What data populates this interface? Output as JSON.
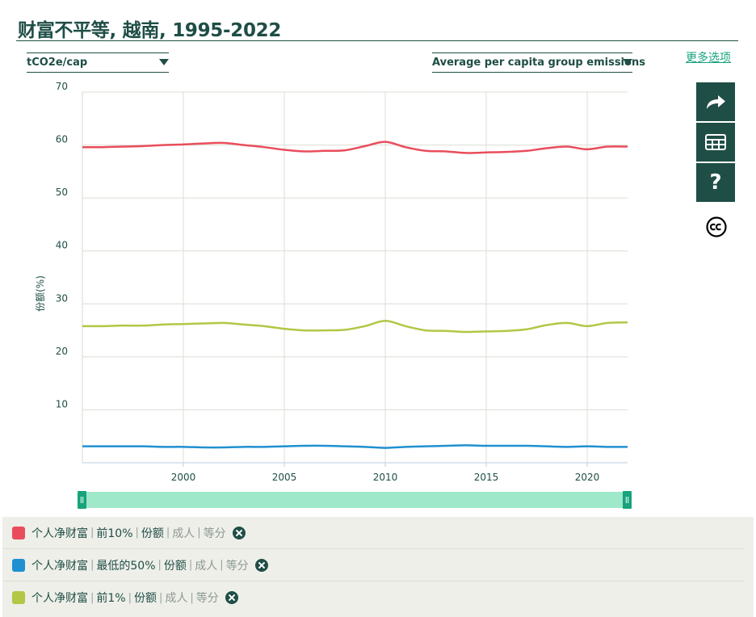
{
  "header": {
    "title": "财富不平等, 越南, 1995-2022",
    "more_options": "更多选项"
  },
  "controls": {
    "unit_select": "tCO2e/cap",
    "metric_select": "Average per capita group emissions"
  },
  "sidebar": {
    "share_icon": "share-arrow-icon",
    "table_icon": "table-icon",
    "help_label": "?",
    "license_icon": "creative-commons-icon"
  },
  "colors": {
    "dark": "#1f4e46",
    "accent": "#17a37c",
    "top10": "#e94d5b",
    "bottom50": "#2090d0",
    "top1": "#b4c645",
    "slider": "#9fe8c9"
  },
  "chart_data": {
    "type": "line",
    "title": "财富不平等, 越南, 1995-2022",
    "xlabel": "",
    "ylabel": "份额(%)",
    "xlim": [
      1995,
      2022
    ],
    "ylim": [
      0,
      70
    ],
    "yticks": [
      10,
      20,
      30,
      40,
      50,
      60,
      70
    ],
    "xticks": [
      2000,
      2005,
      2010,
      2015,
      2020
    ],
    "x": [
      1995,
      1996,
      1997,
      1998,
      1999,
      2000,
      2001,
      2002,
      2003,
      2004,
      2005,
      2006,
      2007,
      2008,
      2009,
      2010,
      2011,
      2012,
      2013,
      2014,
      2015,
      2016,
      2017,
      2018,
      2019,
      2020,
      2021,
      2022
    ],
    "series": [
      {
        "name": "前10%",
        "color": "#e94d5b",
        "values": [
          59.6,
          59.6,
          59.7,
          59.8,
          60.0,
          60.1,
          60.3,
          60.4,
          60.0,
          59.6,
          59.1,
          58.8,
          58.9,
          59.0,
          59.8,
          60.6,
          59.6,
          58.9,
          58.8,
          58.5,
          58.6,
          58.7,
          58.9,
          59.4,
          59.7,
          59.2,
          59.7,
          59.7
        ]
      },
      {
        "name": "最低的50%",
        "color": "#2090d0",
        "values": [
          3.1,
          3.1,
          3.1,
          3.1,
          3.0,
          3.0,
          2.9,
          2.9,
          3.0,
          3.0,
          3.1,
          3.2,
          3.2,
          3.1,
          3.0,
          2.8,
          3.0,
          3.1,
          3.2,
          3.3,
          3.2,
          3.2,
          3.2,
          3.1,
          3.0,
          3.1,
          3.0,
          3.0
        ]
      },
      {
        "name": "前1%",
        "color": "#b4c645",
        "values": [
          25.8,
          25.8,
          25.9,
          25.9,
          26.1,
          26.2,
          26.3,
          26.4,
          26.1,
          25.8,
          25.3,
          25.0,
          25.0,
          25.1,
          25.8,
          26.8,
          25.8,
          25.0,
          24.9,
          24.7,
          24.8,
          24.9,
          25.2,
          26.0,
          26.4,
          25.8,
          26.4,
          26.5
        ]
      }
    ]
  },
  "legend": [
    {
      "name": "个人净财富",
      "metric": "前10%",
      "kind": "份额",
      "pop": "成人",
      "unit": "等分"
    },
    {
      "name": "个人净财富",
      "metric": "最低的50%",
      "kind": "份额",
      "pop": "成人",
      "unit": "等分"
    },
    {
      "name": "个人净财富",
      "metric": "前1%",
      "kind": "份额",
      "pop": "成人",
      "unit": "等分"
    }
  ]
}
